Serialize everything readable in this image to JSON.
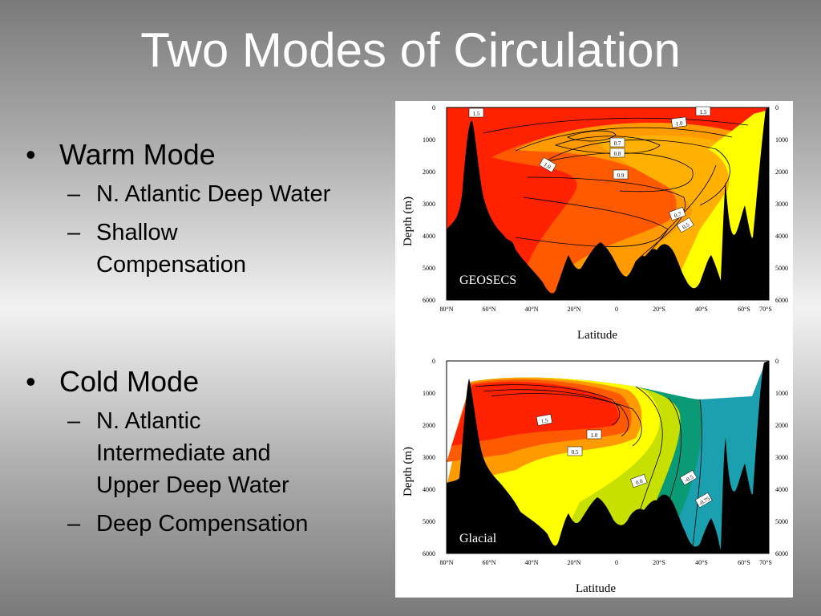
{
  "slide": {
    "title": "Two Modes of Circulation",
    "warm": {
      "heading": "Warm Mode",
      "items": [
        "N. Atlantic Deep Water",
        "Shallow\nCompensation"
      ]
    },
    "cold": {
      "heading": "Cold Mode",
      "items": [
        "N. Atlantic\nIntermediate and\nUpper Deep Water",
        "Deep Compensation"
      ]
    }
  },
  "figures": {
    "ylabel": "Depth (m)",
    "xlabel": "Latitude",
    "x_ticks": [
      "80°N",
      "60°N",
      "40°N",
      "20°N",
      "0",
      "20°S",
      "40°S",
      "60°S",
      "70°S"
    ],
    "y_ticks": [
      "0",
      "1000",
      "2000",
      "3000",
      "4000",
      "5000",
      "6000"
    ],
    "top": {
      "label": "GEOSECS",
      "contours": [
        "1.5",
        "1.5",
        "1.0",
        "0.7",
        "0.8",
        "1.0",
        "0.9",
        "0.7",
        "0.5"
      ]
    },
    "bottom": {
      "label": "Glacial",
      "contours": [
        "1.5",
        "1.0",
        "0.5",
        "0.0",
        "-0.5",
        "-0.75"
      ]
    },
    "colors": {
      "red": "#ff2200",
      "red_orange": "#ff5a00",
      "orange": "#ff9a00",
      "yellow": "#ffff00",
      "yellow_green": "#c8e000",
      "green": "#0a9a76",
      "teal": "#1aa0ae",
      "black": "#000000"
    }
  }
}
